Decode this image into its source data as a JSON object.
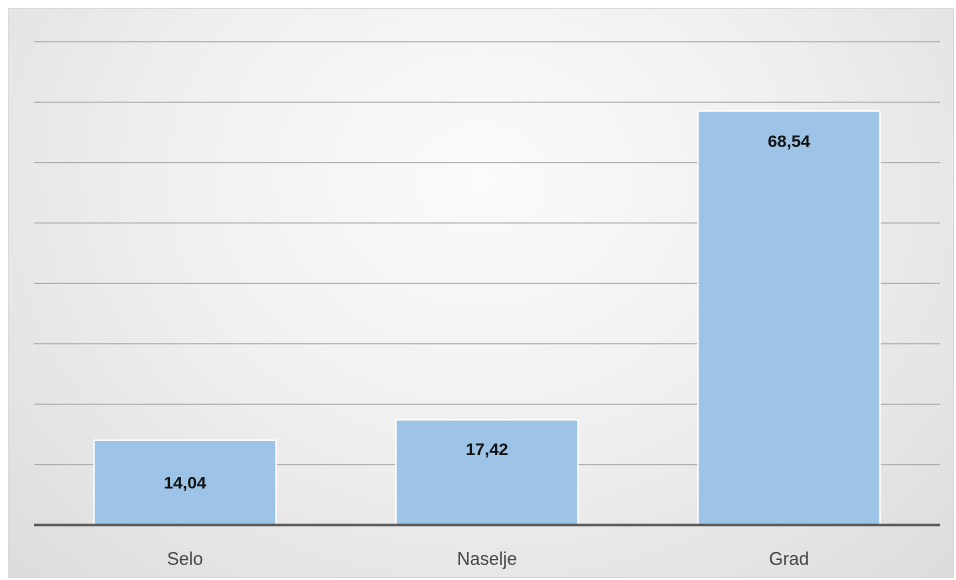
{
  "chart_data": {
    "type": "bar",
    "categories": [
      "Selo",
      "Naselje",
      "Grad"
    ],
    "values": [
      14.04,
      17.42,
      68.54
    ],
    "value_labels": [
      "14,04",
      "17,42",
      "68,54"
    ],
    "title": "",
    "xlabel": "",
    "ylabel": "",
    "ylim": [
      0,
      80
    ],
    "gridline_step": 10,
    "grid": true,
    "legend": "none",
    "colors": {
      "bar_fill": "#9dc3e6",
      "bar_edge": "#ffffff",
      "gridline": "#a6a6a6",
      "baseline": "#595959"
    }
  }
}
